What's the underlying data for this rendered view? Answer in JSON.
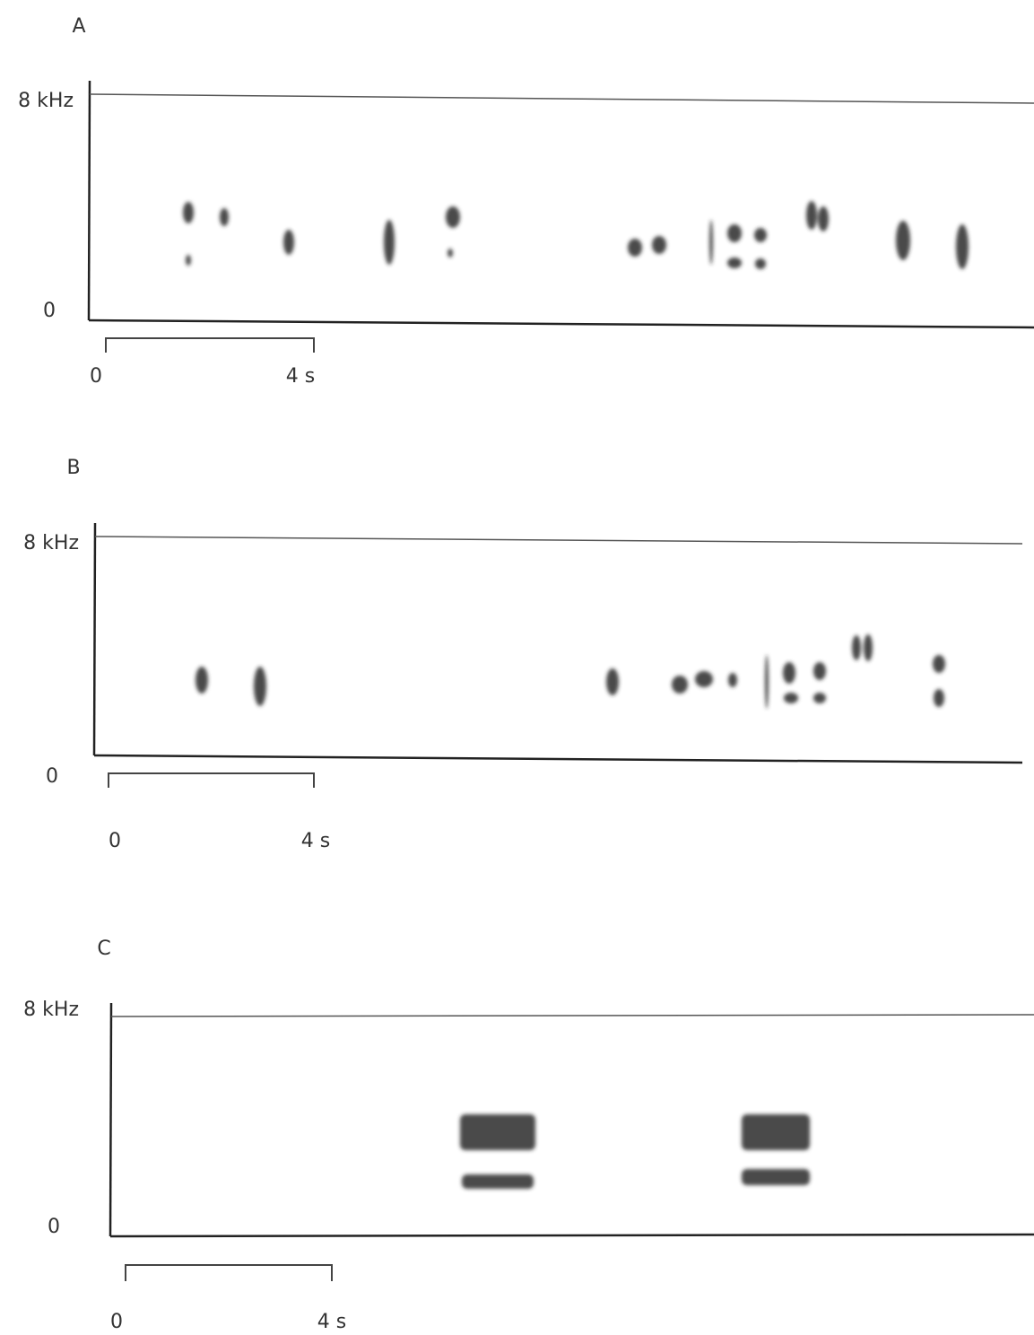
{
  "panels": [
    {
      "label": "A",
      "y_top": "8 kHz",
      "y_bottom": "0",
      "scale_start": "0",
      "scale_end": "4 s"
    },
    {
      "label": "B",
      "y_top": "8 kHz",
      "y_bottom": "0",
      "scale_start": "0",
      "scale_end": "4 s"
    },
    {
      "label": "C",
      "y_top": "8 kHz",
      "y_bottom": "0",
      "scale_start": "0",
      "scale_end": "4 s"
    }
  ]
}
